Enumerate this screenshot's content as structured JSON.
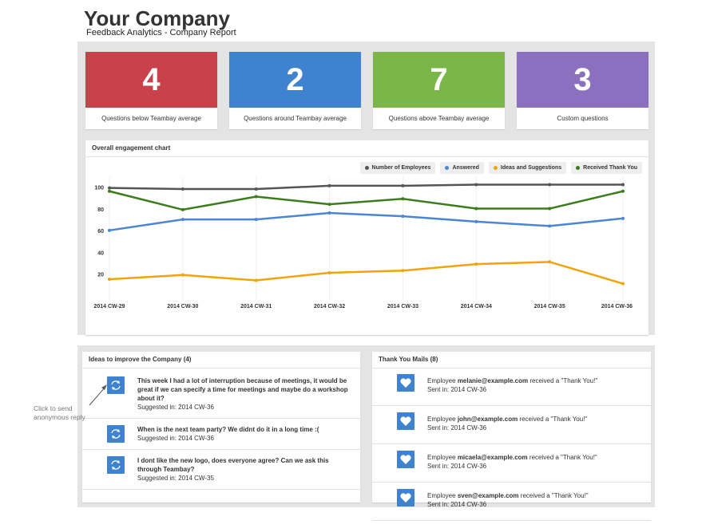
{
  "header": {
    "title": "Your Company",
    "subtitle": "Feedback Analytics - Company Report"
  },
  "stats": [
    {
      "value": 4,
      "label": "Questions below Teambay average",
      "color": "#c9414b"
    },
    {
      "value": 2,
      "label": "Questions around Teambay average",
      "color": "#3f82d0"
    },
    {
      "value": 7,
      "label": "Questions above Teambay average",
      "color": "#7ab648"
    },
    {
      "value": 3,
      "label": "Custom questions",
      "color": "#8a70bf"
    }
  ],
  "chart_data": {
    "type": "line",
    "title": "Overall engagement chart",
    "categories": [
      "2014 CW-29",
      "2014 CW-30",
      "2014 CW-31",
      "2014 CW-32",
      "2014 CW-33",
      "2014 CW-34",
      "2014 CW-35",
      "2014 CW-36"
    ],
    "series": [
      {
        "name": "Number of Employees",
        "color": "#555555",
        "values": [
          100,
          99,
          99,
          102,
          102,
          103,
          103,
          103
        ]
      },
      {
        "name": "Answered",
        "color": "#4a86d4",
        "values": [
          61,
          71,
          71,
          77,
          74,
          69,
          65,
          72
        ]
      },
      {
        "name": "Ideas and Suggestions",
        "color": "#f0a30a",
        "values": [
          16,
          20,
          15,
          22,
          24,
          30,
          32,
          12
        ]
      },
      {
        "name": "Received Thank You",
        "color": "#3a7d1a",
        "values": [
          97,
          80,
          92,
          85,
          90,
          81,
          81,
          97
        ]
      }
    ],
    "ylim": [
      0,
      110
    ],
    "yticks": [
      20,
      40,
      60,
      80,
      100
    ]
  },
  "ideas": {
    "title": "Ideas to improve the Company (4)",
    "items": [
      {
        "text": "This week I had a lot of interruption because of meetings, it would be great if we can specify a time for meetings and maybe do a workshop about it?",
        "suggested": "Suggested in: 2014 CW-36"
      },
      {
        "text": "When is the next team party? We didnt do it in a long time :(",
        "suggested": "Suggested in: 2014 CW-36"
      },
      {
        "text": "I dont like the new logo, does everyone agree? Can we ask this through Teambay?",
        "suggested": "Suggested in: 2014 CW-35"
      }
    ]
  },
  "thanks": {
    "title": "Thank You Mails (8)",
    "items": [
      {
        "prefix": "Employee",
        "email": "melanie@example.com",
        "suffix": "received a \"Thank You!\"",
        "sent": "Sent in: 2014 CW-36"
      },
      {
        "prefix": "Employee",
        "email": "john@example.com",
        "suffix": "received a \"Thank You!\"",
        "sent": "Sent in: 2014 CW-36"
      },
      {
        "prefix": "Employee",
        "email": "micaela@example.com",
        "suffix": "received a \"Thank You!\"",
        "sent": "Sent in: 2014 CW-36"
      },
      {
        "prefix": "Employee",
        "email": "sven@example.com",
        "suffix": "received a \"Thank You!\"",
        "sent": "Sent in: 2014 CW-36"
      }
    ]
  },
  "annotation": "Click to send anonymous reply"
}
